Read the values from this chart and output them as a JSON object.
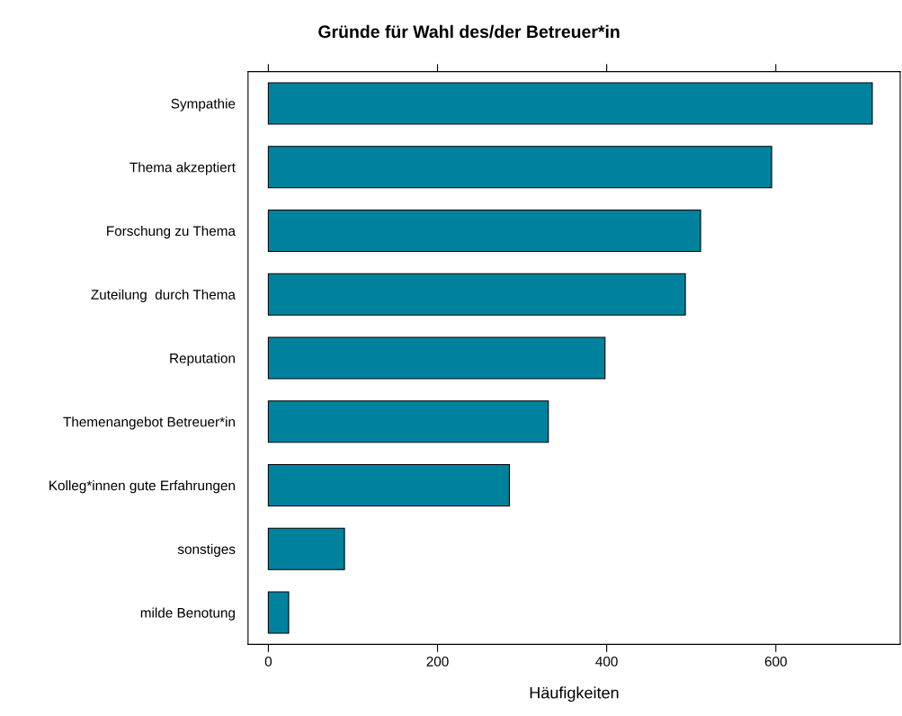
{
  "chart_data": {
    "type": "bar",
    "orientation": "horizontal",
    "title": "Gründe für Wahl des/der Betreuer*in",
    "xlabel": "Häufigkeiten",
    "categories": [
      "Sympathie",
      "Thema akzeptiert",
      "Forschung zu Thema",
      "Zuteilung  durch Thema",
      "Reputation",
      "Themenangebot Betreuer*in",
      "Kolleg*innen gute Erfahrungen",
      "sonstiges",
      "milde Benotung"
    ],
    "values": [
      714,
      595,
      511,
      493,
      398,
      331,
      285,
      90,
      24
    ],
    "color": "#00829f",
    "xlim": [
      -24,
      747
    ],
    "xticks": [
      0,
      200,
      400,
      600
    ],
    "grid": false
  }
}
